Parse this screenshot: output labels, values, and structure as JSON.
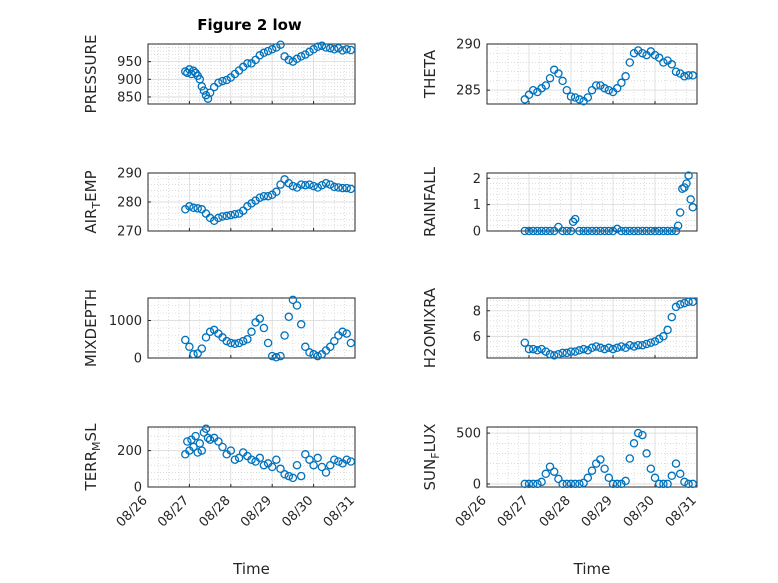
{
  "figure": {
    "title": "Figure 2 low",
    "xlabel": "Time"
  },
  "chart_data": [
    {
      "type": "scatter",
      "title": "Figure 2 low",
      "ylabel": "PRESSURE",
      "ylim": [
        830,
        1000
      ],
      "yticks": [
        850,
        900,
        950
      ],
      "xlim": [
        0,
        5
      ],
      "xticks": [
        "08/26",
        "08/27",
        "08/28",
        "08/29",
        "08/30",
        "08/31"
      ],
      "grid": true,
      "marker": "circle",
      "color": "#0072BD",
      "x": [
        0.9,
        0.95,
        1.0,
        1.05,
        1.1,
        1.15,
        1.2,
        1.25,
        1.3,
        1.35,
        1.4,
        1.45,
        1.5,
        1.6,
        1.7,
        1.8,
        1.9,
        2.0,
        2.1,
        2.2,
        2.3,
        2.4,
        2.5,
        2.6,
        2.7,
        2.8,
        2.9,
        3.0,
        3.1,
        3.2,
        3.3,
        3.4,
        3.5,
        3.6,
        3.7,
        3.8,
        3.9,
        4.0,
        4.1,
        4.2,
        4.3,
        4.4,
        4.5,
        4.6,
        4.7,
        4.8,
        4.9
      ],
      "y": [
        922,
        918,
        928,
        915,
        924,
        918,
        910,
        900,
        880,
        868,
        855,
        845,
        862,
        878,
        890,
        895,
        898,
        905,
        915,
        925,
        935,
        945,
        945,
        955,
        968,
        975,
        980,
        985,
        990,
        998,
        965,
        955,
        950,
        958,
        965,
        970,
        978,
        985,
        992,
        995,
        990,
        988,
        985,
        988,
        982,
        985,
        983
      ]
    },
    {
      "type": "scatter",
      "ylabel": "THETA",
      "ylim": [
        283.5,
        290
      ],
      "yticks": [
        285,
        290
      ],
      "xlim": [
        0,
        5
      ],
      "grid": true,
      "marker": "circle",
      "color": "#0072BD",
      "x": [
        0.9,
        1.0,
        1.1,
        1.2,
        1.3,
        1.4,
        1.5,
        1.6,
        1.7,
        1.8,
        1.9,
        2.0,
        2.1,
        2.2,
        2.3,
        2.4,
        2.5,
        2.6,
        2.7,
        2.8,
        2.9,
        3.0,
        3.1,
        3.2,
        3.3,
        3.4,
        3.5,
        3.6,
        3.7,
        3.8,
        3.9,
        4.0,
        4.1,
        4.2,
        4.3,
        4.4,
        4.5,
        4.6,
        4.7,
        4.8,
        4.9
      ],
      "y": [
        284.0,
        284.5,
        285.0,
        284.8,
        285.2,
        285.5,
        286.3,
        287.2,
        286.8,
        286.0,
        285.0,
        284.3,
        284.2,
        284.0,
        283.8,
        284.2,
        285.0,
        285.5,
        285.5,
        285.2,
        285.0,
        284.8,
        285.2,
        285.8,
        286.5,
        288.0,
        289.0,
        289.3,
        289.0,
        288.8,
        289.2,
        288.8,
        288.5,
        288.0,
        288.2,
        287.8,
        287.0,
        286.8,
        286.5,
        286.6,
        286.6
      ]
    },
    {
      "type": "scatter",
      "ylabel": "AIR_TEMP",
      "ylim": [
        270,
        290
      ],
      "yticks": [
        270,
        280,
        290
      ],
      "xlim": [
        0,
        5
      ],
      "grid": true,
      "marker": "circle",
      "color": "#0072BD",
      "x": [
        0.9,
        1.0,
        1.1,
        1.2,
        1.3,
        1.4,
        1.5,
        1.6,
        1.7,
        1.8,
        1.9,
        2.0,
        2.1,
        2.2,
        2.3,
        2.4,
        2.5,
        2.6,
        2.7,
        2.8,
        2.9,
        3.0,
        3.1,
        3.2,
        3.3,
        3.4,
        3.5,
        3.6,
        3.7,
        3.8,
        3.9,
        4.0,
        4.1,
        4.2,
        4.3,
        4.4,
        4.5,
        4.6,
        4.7,
        4.8,
        4.9
      ],
      "y": [
        277.5,
        278.5,
        278.0,
        277.8,
        277.5,
        276.0,
        274.5,
        273.5,
        274.5,
        275.0,
        275.2,
        275.5,
        275.8,
        276.0,
        277.0,
        278.5,
        279.5,
        280.5,
        281.5,
        282.0,
        282.0,
        282.5,
        283.5,
        286.0,
        287.8,
        286.5,
        285.5,
        285.0,
        286.0,
        285.8,
        286.0,
        285.5,
        285.0,
        285.8,
        286.5,
        286.0,
        285.2,
        285.0,
        284.8,
        284.8,
        284.5
      ]
    },
    {
      "type": "scatter",
      "ylabel": "RAINFALL",
      "ylim": [
        0,
        2.2
      ],
      "yticks": [
        0,
        1,
        2
      ],
      "xlim": [
        0,
        5
      ],
      "grid": true,
      "marker": "circle",
      "color": "#0072BD",
      "x": [
        0.9,
        1.0,
        1.1,
        1.2,
        1.3,
        1.4,
        1.5,
        1.6,
        1.7,
        1.8,
        1.9,
        2.0,
        2.05,
        2.1,
        2.2,
        2.3,
        2.4,
        2.5,
        2.6,
        2.7,
        2.8,
        2.9,
        3.0,
        3.1,
        3.2,
        3.3,
        3.4,
        3.5,
        3.6,
        3.7,
        3.8,
        3.9,
        4.0,
        4.1,
        4.2,
        4.3,
        4.4,
        4.5,
        4.55,
        4.6,
        4.65,
        4.7,
        4.75,
        4.8,
        4.85,
        4.9
      ],
      "y": [
        0,
        0,
        0,
        0,
        0,
        0,
        0,
        0,
        0.15,
        0,
        0,
        0,
        0.35,
        0.45,
        0,
        0,
        0,
        0,
        0,
        0,
        0,
        0,
        0,
        0.08,
        0,
        0,
        0,
        0,
        0,
        0,
        0,
        0,
        0,
        0,
        0,
        0,
        0,
        0,
        0.2,
        0.7,
        1.6,
        1.65,
        1.8,
        2.1,
        1.2,
        0.9
      ]
    },
    {
      "type": "scatter",
      "ylabel": "MIXDEPTH",
      "ylim": [
        0,
        1600
      ],
      "yticks": [
        0,
        1000
      ],
      "xlim": [
        0,
        5
      ],
      "grid": true,
      "marker": "circle",
      "color": "#0072BD",
      "x": [
        0.9,
        1.0,
        1.1,
        1.2,
        1.3,
        1.4,
        1.5,
        1.6,
        1.7,
        1.8,
        1.9,
        2.0,
        2.1,
        2.2,
        2.3,
        2.4,
        2.5,
        2.6,
        2.7,
        2.8,
        2.9,
        3.0,
        3.1,
        3.2,
        3.3,
        3.4,
        3.5,
        3.6,
        3.7,
        3.8,
        3.9,
        4.0,
        4.1,
        4.2,
        4.3,
        4.4,
        4.5,
        4.6,
        4.7,
        4.8,
        4.9
      ],
      "y": [
        480,
        300,
        100,
        120,
        250,
        550,
        700,
        750,
        650,
        550,
        450,
        400,
        380,
        400,
        450,
        500,
        700,
        950,
        1050,
        800,
        400,
        50,
        20,
        50,
        600,
        1100,
        1550,
        1400,
        900,
        300,
        150,
        100,
        50,
        100,
        200,
        300,
        450,
        600,
        700,
        650,
        400
      ]
    },
    {
      "type": "scatter",
      "ylabel": "H2OMIXRA",
      "ylim": [
        4.3,
        9.0
      ],
      "yticks": [
        6,
        8
      ],
      "xlim": [
        0,
        5
      ],
      "grid": true,
      "marker": "circle",
      "color": "#0072BD",
      "x": [
        0.9,
        1.0,
        1.1,
        1.2,
        1.3,
        1.4,
        1.5,
        1.6,
        1.7,
        1.8,
        1.9,
        2.0,
        2.1,
        2.2,
        2.3,
        2.4,
        2.5,
        2.6,
        2.7,
        2.8,
        2.9,
        3.0,
        3.1,
        3.2,
        3.3,
        3.4,
        3.5,
        3.6,
        3.7,
        3.8,
        3.9,
        4.0,
        4.1,
        4.2,
        4.3,
        4.4,
        4.5,
        4.6,
        4.7,
        4.8,
        4.9
      ],
      "y": [
        5.5,
        5.0,
        5.0,
        4.9,
        5.0,
        4.8,
        4.6,
        4.5,
        4.6,
        4.7,
        4.7,
        4.8,
        4.8,
        4.9,
        5.0,
        4.9,
        5.1,
        5.2,
        5.1,
        5.0,
        5.1,
        5.0,
        5.1,
        5.2,
        5.1,
        5.3,
        5.2,
        5.3,
        5.3,
        5.4,
        5.5,
        5.6,
        5.8,
        6.0,
        6.5,
        7.5,
        8.3,
        8.5,
        8.6,
        8.7,
        8.7
      ]
    },
    {
      "type": "scatter",
      "ylabel": "TERR_MSL",
      "ylim": [
        0,
        330
      ],
      "yticks": [
        0,
        200
      ],
      "xlim": [
        0,
        5
      ],
      "grid": true,
      "marker": "circle",
      "color": "#0072BD",
      "x": [
        0.9,
        0.95,
        1.0,
        1.05,
        1.1,
        1.15,
        1.2,
        1.25,
        1.3,
        1.35,
        1.4,
        1.45,
        1.5,
        1.6,
        1.7,
        1.8,
        1.9,
        2.0,
        2.1,
        2.2,
        2.3,
        2.4,
        2.5,
        2.6,
        2.7,
        2.8,
        2.9,
        3.0,
        3.1,
        3.2,
        3.3,
        3.4,
        3.5,
        3.6,
        3.7,
        3.8,
        3.9,
        4.0,
        4.1,
        4.2,
        4.3,
        4.4,
        4.5,
        4.6,
        4.7,
        4.8,
        4.9
      ],
      "y": [
        180,
        250,
        200,
        260,
        220,
        280,
        190,
        240,
        200,
        300,
        320,
        270,
        260,
        270,
        250,
        220,
        180,
        200,
        150,
        160,
        190,
        170,
        150,
        140,
        160,
        120,
        130,
        110,
        150,
        100,
        70,
        60,
        50,
        120,
        60,
        180,
        150,
        120,
        160,
        110,
        80,
        120,
        150,
        140,
        130,
        150,
        140
      ]
    },
    {
      "type": "scatter",
      "ylabel": "SUN_FLUX",
      "ylim": [
        -30,
        560
      ],
      "yticks": [
        0,
        500
      ],
      "xlim": [
        0,
        5
      ],
      "grid": true,
      "marker": "circle",
      "color": "#0072BD",
      "x": [
        0.9,
        1.0,
        1.1,
        1.2,
        1.3,
        1.4,
        1.5,
        1.6,
        1.7,
        1.8,
        1.9,
        2.0,
        2.1,
        2.2,
        2.3,
        2.4,
        2.5,
        2.6,
        2.7,
        2.8,
        2.9,
        3.0,
        3.1,
        3.2,
        3.3,
        3.4,
        3.5,
        3.6,
        3.7,
        3.8,
        3.9,
        4.0,
        4.1,
        4.2,
        4.3,
        4.4,
        4.5,
        4.6,
        4.7,
        4.8,
        4.9
      ],
      "y": [
        0,
        0,
        0,
        0,
        20,
        100,
        170,
        120,
        50,
        0,
        0,
        0,
        0,
        0,
        10,
        60,
        130,
        200,
        240,
        150,
        60,
        0,
        0,
        0,
        30,
        250,
        400,
        500,
        480,
        300,
        150,
        60,
        0,
        0,
        0,
        80,
        200,
        100,
        20,
        0,
        0
      ]
    }
  ]
}
